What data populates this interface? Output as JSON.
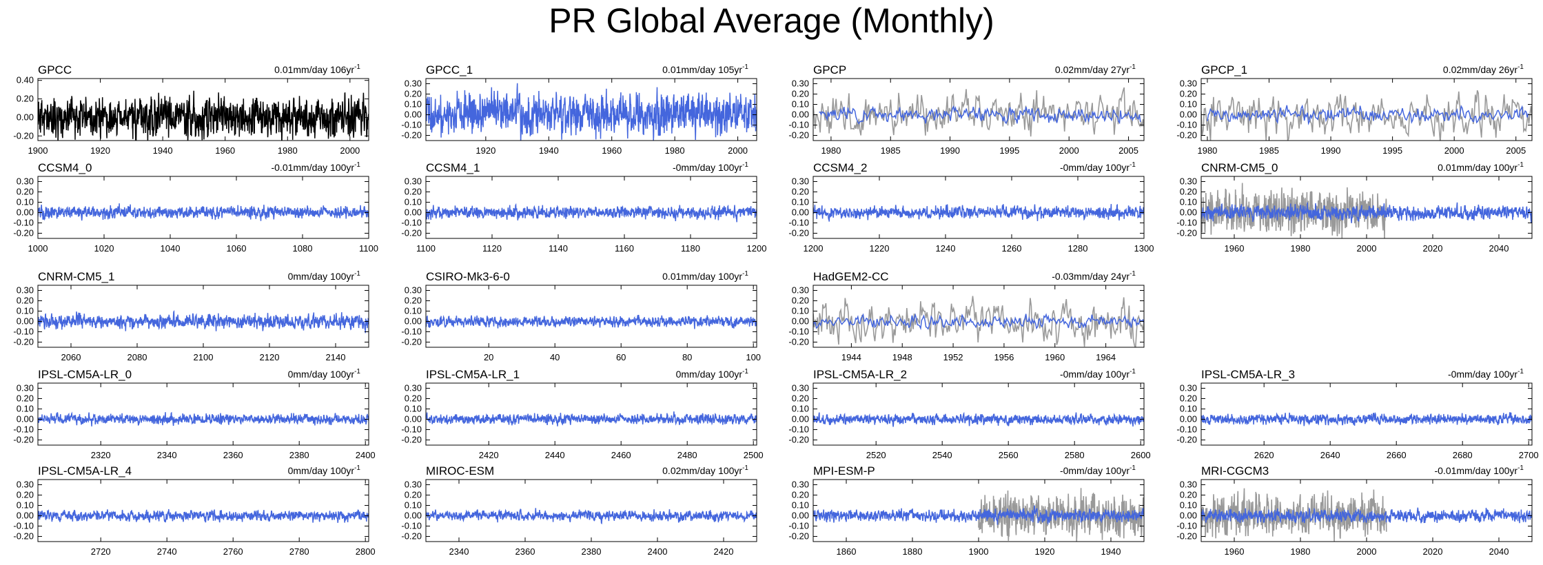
{
  "title": "PR Global Average (Monthly)",
  "colors": {
    "model": "#4466dd",
    "observed": "#999999",
    "reference": "#000000",
    "axis": "#000000"
  },
  "chart_data": [
    {
      "name": "GPCC",
      "trend_value": "0.01mm/day 106yr",
      "trend_exp": "-1",
      "type": "line",
      "xlim": [
        1900,
        2006
      ],
      "xticks": [
        1900,
        1920,
        1940,
        1960,
        1980,
        2000
      ],
      "ylim": [
        -0.25,
        0.42
      ],
      "yticks": [
        0.4,
        0.2,
        0.0,
        -0.2
      ],
      "ytick_labels": [
        "0.40",
        "0.20",
        "0.00",
        "-0.20"
      ],
      "series": [
        {
          "name": "GPCC",
          "role": "reference",
          "x_start": 1900,
          "x_end": 2006,
          "amp": 0.11,
          "seed": 11
        }
      ]
    },
    {
      "name": "GPCC_1",
      "trend_value": "0.01mm/day 105yr",
      "trend_exp": "-1",
      "type": "line",
      "xlim": [
        1901,
        2006
      ],
      "xticks": [
        1920,
        1940,
        1960,
        1980,
        2000
      ],
      "ylim": [
        -0.25,
        0.35
      ],
      "yticks": [
        0.3,
        0.2,
        0.1,
        0.0,
        -0.1,
        -0.2
      ],
      "ytick_labels": [
        "0.30",
        "0.20",
        "0.10",
        "0.00",
        "-0.10",
        "-0.20"
      ],
      "series": [
        {
          "name": "GPCC_1",
          "role": "model",
          "x_start": 1901,
          "x_end": 2006,
          "amp": 0.1,
          "seed": 12
        }
      ]
    },
    {
      "name": "GPCP",
      "trend_value": "0.02mm/day 27yr",
      "trend_exp": "-1",
      "type": "line",
      "xlim": [
        1978.5,
        2006.3
      ],
      "xticks": [
        1980,
        1985,
        1990,
        1995,
        2000,
        2005
      ],
      "ylim": [
        -0.25,
        0.35
      ],
      "yticks": [
        0.3,
        0.2,
        0.1,
        0.0,
        -0.1,
        -0.2
      ],
      "ytick_labels": [
        "0.30",
        "0.20",
        "0.10",
        "0.00",
        "-0.10",
        "-0.20"
      ],
      "series": [
        {
          "name": "GPCC_1",
          "role": "observed",
          "x_start": 1978.5,
          "x_end": 2006.3,
          "amp": 0.1,
          "seed": 13
        },
        {
          "name": "GPCP",
          "role": "model",
          "x_start": 1979,
          "x_end": 2006,
          "amp": 0.035,
          "seed": 14
        }
      ]
    },
    {
      "name": "GPCP_1",
      "trend_value": "0.02mm/day 26yr",
      "trend_exp": "-1",
      "type": "line",
      "xlim": [
        1979.5,
        2006.3
      ],
      "xticks": [
        1980,
        1985,
        1990,
        1995,
        2000,
        2005
      ],
      "ylim": [
        -0.25,
        0.35
      ],
      "yticks": [
        0.3,
        0.2,
        0.1,
        0.0,
        -0.1,
        -0.2
      ],
      "ytick_labels": [
        "0.30",
        "0.20",
        "0.10",
        "0.00",
        "-0.10",
        "-0.20"
      ],
      "series": [
        {
          "name": "GPCC_1",
          "role": "observed",
          "x_start": 1979.5,
          "x_end": 2006.3,
          "amp": 0.1,
          "seed": 15
        },
        {
          "name": "GPCP_1",
          "role": "model",
          "x_start": 1980,
          "x_end": 2006,
          "amp": 0.035,
          "seed": 16
        }
      ]
    },
    {
      "name": "CCSM4_0",
      "trend_value": "-0.01mm/day 100yr",
      "trend_exp": "-1",
      "type": "line",
      "xlim": [
        1000,
        1100
      ],
      "xticks": [
        1000,
        1020,
        1040,
        1060,
        1080,
        1100
      ],
      "ylim": [
        -0.25,
        0.35
      ],
      "yticks": [
        0.3,
        0.2,
        0.1,
        0.0,
        -0.1,
        -0.2
      ],
      "ytick_labels": [
        "0.30",
        "0.20",
        "0.10",
        "0.00",
        "-0.10",
        "-0.20"
      ],
      "series": [
        {
          "name": "CCSM4_0",
          "role": "model",
          "x_start": 1000,
          "x_end": 1100,
          "amp": 0.03,
          "seed": 21
        }
      ]
    },
    {
      "name": "CCSM4_1",
      "trend_value": "-0mm/day 100yr",
      "trend_exp": "-1",
      "type": "line",
      "xlim": [
        1100,
        1200
      ],
      "xticks": [
        1100,
        1120,
        1140,
        1160,
        1180,
        1200
      ],
      "ylim": [
        -0.25,
        0.35
      ],
      "yticks": [
        0.3,
        0.2,
        0.1,
        0.0,
        -0.1,
        -0.2
      ],
      "ytick_labels": [
        "0.30",
        "0.20",
        "0.10",
        "0.00",
        "-0.10",
        "-0.20"
      ],
      "series": [
        {
          "name": "CCSM4_1",
          "role": "model",
          "x_start": 1100,
          "x_end": 1200,
          "amp": 0.03,
          "seed": 22
        }
      ]
    },
    {
      "name": "CCSM4_2",
      "trend_value": "-0mm/day 100yr",
      "trend_exp": "-1",
      "type": "line",
      "xlim": [
        1200,
        1300
      ],
      "xticks": [
        1200,
        1220,
        1240,
        1260,
        1280,
        1300
      ],
      "ylim": [
        -0.25,
        0.35
      ],
      "yticks": [
        0.3,
        0.2,
        0.1,
        0.0,
        -0.1,
        -0.2
      ],
      "ytick_labels": [
        "0.30",
        "0.20",
        "0.10",
        "0.00",
        "-0.10",
        "-0.20"
      ],
      "series": [
        {
          "name": "CCSM4_2",
          "role": "model",
          "x_start": 1200,
          "x_end": 1300,
          "amp": 0.03,
          "seed": 23
        }
      ]
    },
    {
      "name": "CNRM-CM5_0",
      "trend_value": "0.01mm/day 100yr",
      "trend_exp": "-1",
      "type": "line",
      "xlim": [
        1950,
        2050
      ],
      "xticks": [
        1960,
        1980,
        2000,
        2020,
        2040
      ],
      "ylim": [
        -0.25,
        0.35
      ],
      "yticks": [
        0.3,
        0.2,
        0.1,
        0.0,
        -0.1,
        -0.2
      ],
      "ytick_labels": [
        "0.30",
        "0.20",
        "0.10",
        "0.00",
        "-0.10",
        "-0.20"
      ],
      "series": [
        {
          "name": "GPCC_1",
          "role": "observed",
          "x_start": 1950,
          "x_end": 2006,
          "amp": 0.1,
          "seed": 24
        },
        {
          "name": "CNRM-CM5_0",
          "role": "model",
          "x_start": 1950,
          "x_end": 2050,
          "amp": 0.035,
          "seed": 25
        }
      ]
    },
    {
      "name": "CNRM-CM5_1",
      "trend_value": "0mm/day 100yr",
      "trend_exp": "-1",
      "type": "line",
      "xlim": [
        2050,
        2150
      ],
      "xticks": [
        2060,
        2080,
        2100,
        2120,
        2140
      ],
      "ylim": [
        -0.25,
        0.35
      ],
      "yticks": [
        0.3,
        0.2,
        0.1,
        0.0,
        -0.1,
        -0.2
      ],
      "ytick_labels": [
        "0.30",
        "0.20",
        "0.10",
        "0.00",
        "-0.10",
        "-0.20"
      ],
      "series": [
        {
          "name": "CNRM-CM5_1",
          "role": "model",
          "x_start": 2050,
          "x_end": 2150,
          "amp": 0.035,
          "seed": 31
        }
      ]
    },
    {
      "name": "CSIRO-Mk3-6-0",
      "trend_value": "0.01mm/day 100yr",
      "trend_exp": "-1",
      "type": "line",
      "xlim": [
        1,
        101
      ],
      "xticks": [
        20,
        40,
        60,
        80,
        100
      ],
      "ylim": [
        -0.25,
        0.35
      ],
      "yticks": [
        0.3,
        0.2,
        0.1,
        0.0,
        -0.1,
        -0.2
      ],
      "ytick_labels": [
        "0.30",
        "0.20",
        "0.10",
        "0.00",
        "-0.10",
        "-0.20"
      ],
      "series": [
        {
          "name": "CSIRO-Mk3-6-0",
          "role": "model",
          "x_start": 1,
          "x_end": 101,
          "amp": 0.025,
          "seed": 32
        }
      ]
    },
    {
      "name": "HadGEM2-CC",
      "trend_value": "-0.03mm/day 24yr",
      "trend_exp": "-1",
      "type": "line",
      "xlim": [
        1941,
        1967
      ],
      "xticks": [
        1944,
        1948,
        1952,
        1956,
        1960,
        1964
      ],
      "ylim": [
        -0.25,
        0.35
      ],
      "yticks": [
        0.3,
        0.2,
        0.1,
        0.0,
        -0.1,
        -0.2
      ],
      "ytick_labels": [
        "0.30",
        "0.20",
        "0.10",
        "0.00",
        "-0.10",
        "-0.20"
      ],
      "series": [
        {
          "name": "GPCC_1",
          "role": "observed",
          "x_start": 1941,
          "x_end": 1967,
          "amp": 0.1,
          "seed": 33
        },
        {
          "name": "HadGEM2-CC",
          "role": "model",
          "x_start": 1941,
          "x_end": 1967,
          "amp": 0.03,
          "seed": 34
        }
      ]
    },
    null,
    {
      "name": "IPSL-CM5A-LR_0",
      "trend_value": "0mm/day 100yr",
      "trend_exp": "-1",
      "type": "line",
      "xlim": [
        2301,
        2401
      ],
      "xticks": [
        2320,
        2340,
        2360,
        2380,
        2400
      ],
      "ylim": [
        -0.25,
        0.35
      ],
      "yticks": [
        0.3,
        0.2,
        0.1,
        0.0,
        -0.1,
        -0.2
      ],
      "ytick_labels": [
        "0.30",
        "0.20",
        "0.10",
        "0.00",
        "-0.10",
        "-0.20"
      ],
      "series": [
        {
          "name": "IPSL-CM5A-LR_0",
          "role": "model",
          "x_start": 2301,
          "x_end": 2401,
          "amp": 0.025,
          "seed": 41
        }
      ]
    },
    {
      "name": "IPSL-CM5A-LR_1",
      "trend_value": "0mm/day 100yr",
      "trend_exp": "-1",
      "type": "line",
      "xlim": [
        2401,
        2501
      ],
      "xticks": [
        2420,
        2440,
        2460,
        2480,
        2500
      ],
      "ylim": [
        -0.25,
        0.35
      ],
      "yticks": [
        0.3,
        0.2,
        0.1,
        0.0,
        -0.1,
        -0.2
      ],
      "ytick_labels": [
        "0.30",
        "0.20",
        "0.10",
        "0.00",
        "-0.10",
        "-0.20"
      ],
      "series": [
        {
          "name": "IPSL-CM5A-LR_1",
          "role": "model",
          "x_start": 2401,
          "x_end": 2501,
          "amp": 0.025,
          "seed": 42
        }
      ]
    },
    {
      "name": "IPSL-CM5A-LR_2",
      "trend_value": "-0mm/day 100yr",
      "trend_exp": "-1",
      "type": "line",
      "xlim": [
        2501,
        2601
      ],
      "xticks": [
        2520,
        2540,
        2560,
        2580,
        2600
      ],
      "ylim": [
        -0.25,
        0.35
      ],
      "yticks": [
        0.3,
        0.2,
        0.1,
        0.0,
        -0.1,
        -0.2
      ],
      "ytick_labels": [
        "0.30",
        "0.20",
        "0.10",
        "0.00",
        "-0.10",
        "-0.20"
      ],
      "series": [
        {
          "name": "IPSL-CM5A-LR_2",
          "role": "model",
          "x_start": 2501,
          "x_end": 2601,
          "amp": 0.025,
          "seed": 43
        }
      ]
    },
    {
      "name": "IPSL-CM5A-LR_3",
      "trend_value": "-0mm/day 100yr",
      "trend_exp": "-1",
      "type": "line",
      "xlim": [
        2601,
        2701
      ],
      "xticks": [
        2620,
        2640,
        2660,
        2680,
        2700
      ],
      "ylim": [
        -0.25,
        0.35
      ],
      "yticks": [
        0.3,
        0.2,
        0.1,
        0.0,
        -0.1,
        -0.2
      ],
      "ytick_labels": [
        "0.30",
        "0.20",
        "0.10",
        "0.00",
        "-0.10",
        "-0.20"
      ],
      "series": [
        {
          "name": "IPSL-CM5A-LR_3",
          "role": "model",
          "x_start": 2601,
          "x_end": 2701,
          "amp": 0.025,
          "seed": 44
        }
      ]
    },
    {
      "name": "IPSL-CM5A-LR_4",
      "trend_value": "0mm/day 100yr",
      "trend_exp": "-1",
      "type": "line",
      "xlim": [
        2701,
        2801
      ],
      "xticks": [
        2720,
        2740,
        2760,
        2780,
        2800
      ],
      "ylim": [
        -0.25,
        0.35
      ],
      "yticks": [
        0.3,
        0.2,
        0.1,
        0.0,
        -0.1,
        -0.2
      ],
      "ytick_labels": [
        "0.30",
        "0.20",
        "0.10",
        "0.00",
        "-0.10",
        "-0.20"
      ],
      "series": [
        {
          "name": "IPSL-CM5A-LR_4",
          "role": "model",
          "x_start": 2701,
          "x_end": 2801,
          "amp": 0.025,
          "seed": 51
        }
      ]
    },
    {
      "name": "MIROC-ESM",
      "trend_value": "0.02mm/day 100yr",
      "trend_exp": "-1",
      "type": "line",
      "xlim": [
        2330,
        2430
      ],
      "xticks": [
        2340,
        2360,
        2380,
        2400,
        2420
      ],
      "ylim": [
        -0.25,
        0.35
      ],
      "yticks": [
        0.3,
        0.2,
        0.1,
        0.0,
        -0.1,
        -0.2
      ],
      "ytick_labels": [
        "0.30",
        "0.20",
        "0.10",
        "0.00",
        "-0.10",
        "-0.20"
      ],
      "series": [
        {
          "name": "MIROC-ESM",
          "role": "model",
          "x_start": 2330,
          "x_end": 2430,
          "amp": 0.025,
          "seed": 52
        }
      ]
    },
    {
      "name": "MPI-ESM-P",
      "trend_value": "-0mm/day 100yr",
      "trend_exp": "-1",
      "type": "line",
      "xlim": [
        1850,
        1950
      ],
      "xticks": [
        1860,
        1880,
        1900,
        1920,
        1940
      ],
      "ylim": [
        -0.25,
        0.35
      ],
      "yticks": [
        0.3,
        0.2,
        0.1,
        0.0,
        -0.1,
        -0.2
      ],
      "ytick_labels": [
        "0.30",
        "0.20",
        "0.10",
        "0.00",
        "-0.10",
        "-0.20"
      ],
      "series": [
        {
          "name": "GPCC_1",
          "role": "observed",
          "x_start": 1900,
          "x_end": 1950,
          "amp": 0.1,
          "seed": 53
        },
        {
          "name": "MPI-ESM-P",
          "role": "model",
          "x_start": 1850,
          "x_end": 1950,
          "amp": 0.03,
          "seed": 54
        }
      ]
    },
    {
      "name": "MRI-CGCM3",
      "trend_value": "-0.01mm/day 100yr",
      "trend_exp": "-1",
      "type": "line",
      "xlim": [
        1950,
        2050
      ],
      "xticks": [
        1960,
        1980,
        2000,
        2020,
        2040
      ],
      "ylim": [
        -0.25,
        0.35
      ],
      "yticks": [
        0.3,
        0.2,
        0.1,
        0.0,
        -0.1,
        -0.2
      ],
      "ytick_labels": [
        "0.30",
        "0.20",
        "0.10",
        "0.00",
        "-0.10",
        "-0.20"
      ],
      "series": [
        {
          "name": "GPCC_1",
          "role": "observed",
          "x_start": 1950,
          "x_end": 2006,
          "amp": 0.1,
          "seed": 55
        },
        {
          "name": "MRI-CGCM3",
          "role": "model",
          "x_start": 1950,
          "x_end": 2050,
          "amp": 0.03,
          "seed": 56
        }
      ]
    }
  ]
}
